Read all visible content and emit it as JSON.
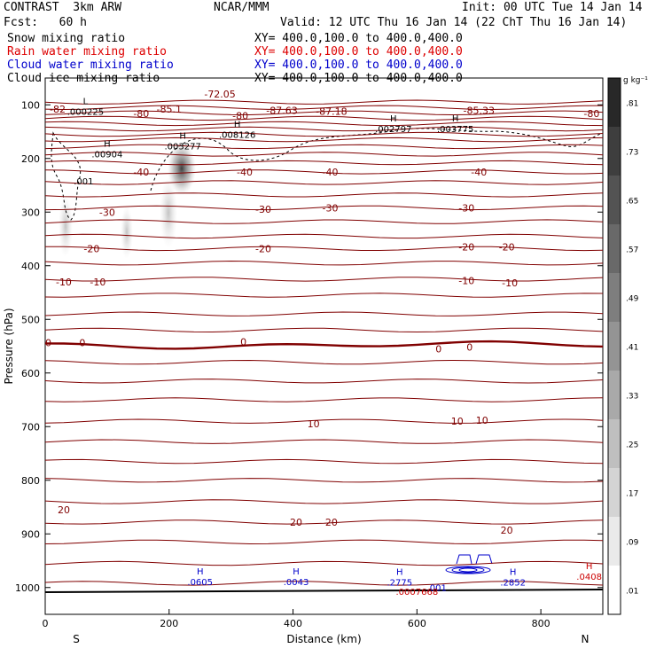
{
  "header": {
    "line1_left": "CONTRAST  3km ARW",
    "line1_center": "NCAR/MMM",
    "line1_right": "Init: 00 UTC Tue 14 Jan 14",
    "line2_left": "Fcst:   60 h",
    "line2_right": "Valid: 12 UTC Thu 16 Jan 14 (22 ChT Thu 16 Jan 14)",
    "fields": [
      {
        "name": "Snow mixing ratio",
        "xy": "XY= 400.0,100.0 to 400.0,400.0",
        "color": "#000000"
      },
      {
        "name": "Rain water mixing ratio",
        "xy": "XY= 400.0,100.0 to 400.0,400.0",
        "color": "#dd0000"
      },
      {
        "name": "Cloud water mixing ratio",
        "xy": "XY= 400.0,100.0 to 400.0,400.0",
        "color": "#0000cc"
      },
      {
        "name": "Cloud ice mixing ratio",
        "xy": "XY= 400.0,100.0 to 400.0,400.0",
        "color": "#000000"
      }
    ]
  },
  "chart_data": {
    "type": "cross-section",
    "xlabel": "Distance (km)",
    "ylabel": "Pressure (hPa)",
    "x_ticks": [
      0,
      200,
      400,
      600,
      800
    ],
    "y_ticks": [
      100,
      200,
      300,
      400,
      500,
      600,
      700,
      800,
      900,
      1000
    ],
    "xlim": [
      0,
      900
    ],
    "ylim": [
      1050,
      50
    ],
    "end_labels": {
      "left": "S",
      "right": "N"
    },
    "colorbar": {
      "unit": "g kg⁻¹",
      "levels": [
        ".81",
        ".73",
        ".65",
        ".57",
        ".49",
        ".41",
        ".33",
        ".25",
        ".17",
        ".09",
        ".01"
      ]
    },
    "temperature_labels": [
      {
        "x": 20,
        "p": 108,
        "text": "-82"
      },
      {
        "x": 155,
        "p": 116,
        "text": "-80"
      },
      {
        "x": 315,
        "p": 120,
        "text": "-80"
      },
      {
        "x": 882,
        "p": 116,
        "text": "-80"
      },
      {
        "x": 200,
        "p": 108,
        "text": "-85.1"
      },
      {
        "x": 462,
        "p": 112,
        "text": "-87.18"
      },
      {
        "x": 700,
        "p": 110,
        "text": "-85.33"
      },
      {
        "x": 382,
        "p": 110,
        "text": "-87.63"
      },
      {
        "x": 282,
        "p": 80,
        "text": "-72.05"
      },
      {
        "x": 155,
        "p": 225,
        "text": "-40"
      },
      {
        "x": 322,
        "p": 225,
        "text": "-40"
      },
      {
        "x": 460,
        "p": 225,
        "text": "-40"
      },
      {
        "x": 700,
        "p": 225,
        "text": "-40"
      },
      {
        "x": 100,
        "p": 300,
        "text": "-30"
      },
      {
        "x": 352,
        "p": 295,
        "text": "-30"
      },
      {
        "x": 460,
        "p": 292,
        "text": "-30"
      },
      {
        "x": 680,
        "p": 292,
        "text": "-30"
      },
      {
        "x": 75,
        "p": 368,
        "text": "-20"
      },
      {
        "x": 352,
        "p": 368,
        "text": "-20"
      },
      {
        "x": 680,
        "p": 365,
        "text": "-20"
      },
      {
        "x": 745,
        "p": 365,
        "text": "-20"
      },
      {
        "x": 30,
        "p": 430,
        "text": "-10"
      },
      {
        "x": 85,
        "p": 430,
        "text": "-10"
      },
      {
        "x": 680,
        "p": 428,
        "text": "-10"
      },
      {
        "x": 750,
        "p": 432,
        "text": "-10"
      },
      {
        "x": 5,
        "p": 543,
        "text": "0"
      },
      {
        "x": 60,
        "p": 543,
        "text": "0"
      },
      {
        "x": 320,
        "p": 542,
        "text": "0"
      },
      {
        "x": 635,
        "p": 555,
        "text": "0"
      },
      {
        "x": 685,
        "p": 552,
        "text": "0"
      },
      {
        "x": 665,
        "p": 690,
        "text": "10"
      },
      {
        "x": 705,
        "p": 688,
        "text": "10"
      },
      {
        "x": 433,
        "p": 695,
        "text": "10"
      },
      {
        "x": 30,
        "p": 855,
        "text": "20"
      },
      {
        "x": 405,
        "p": 878,
        "text": "20"
      },
      {
        "x": 462,
        "p": 878,
        "text": "20"
      },
      {
        "x": 745,
        "p": 893,
        "text": "20"
      }
    ],
    "extrema": [
      {
        "x": 65,
        "p": 105,
        "type": "L",
        "value": ".000225"
      },
      {
        "x": 310,
        "p": 148,
        "type": "H",
        "value": ".008126"
      },
      {
        "x": 562,
        "p": 138,
        "type": "H",
        "value": ".002797"
      },
      {
        "x": 662,
        "p": 138,
        "type": "H",
        "value": ".003775"
      },
      {
        "x": 100,
        "p": 185,
        "type": "H",
        "value": ".00904"
      },
      {
        "x": 222,
        "p": 170,
        "type": "H",
        "value": ".003277"
      },
      {
        "x": 62,
        "p": 235,
        "type": "",
        "value": ".001"
      },
      {
        "x": 250,
        "p": 982,
        "type": "H",
        "value": ".0605"
      },
      {
        "x": 405,
        "p": 982,
        "type": "H",
        "value": ".0043"
      },
      {
        "x": 572,
        "p": 983,
        "type": "H",
        "value": ".2775"
      },
      {
        "x": 632,
        "p": 993,
        "type": "",
        "value": ".001"
      },
      {
        "x": 755,
        "p": 983,
        "type": "H",
        "value": ".2852"
      },
      {
        "x": 600,
        "p": 1000,
        "type": "",
        "value": ".0007668"
      },
      {
        "x": 878,
        "p": 972,
        "type": "H",
        "value": ".0408"
      }
    ]
  }
}
